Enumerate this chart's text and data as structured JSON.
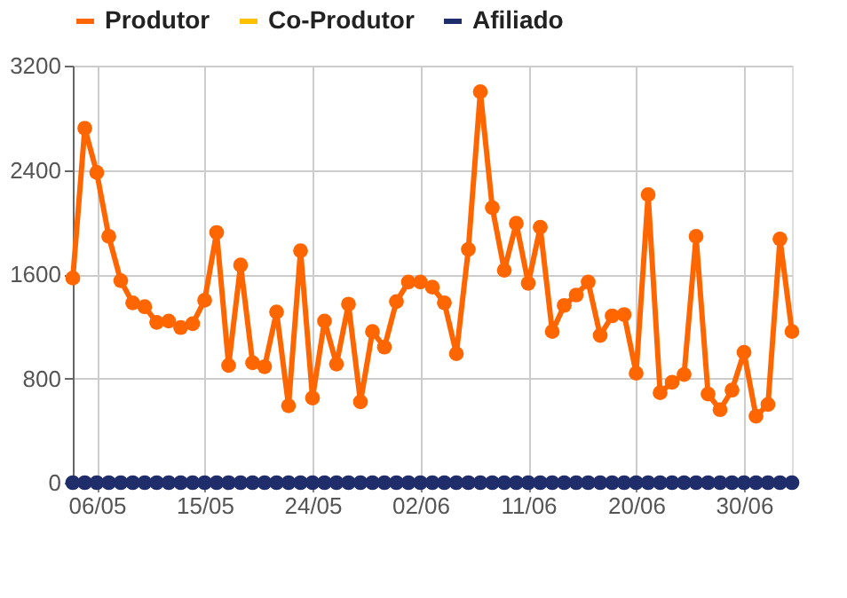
{
  "chart_data": {
    "type": "line",
    "categories": [
      null,
      null,
      "06/05",
      null,
      null,
      null,
      null,
      null,
      null,
      null,
      null,
      "15/05",
      null,
      null,
      null,
      null,
      null,
      null,
      null,
      null,
      "24/05",
      null,
      null,
      null,
      null,
      null,
      null,
      null,
      null,
      "02/06",
      null,
      null,
      null,
      null,
      null,
      null,
      null,
      null,
      "11/06",
      null,
      null,
      null,
      null,
      null,
      null,
      null,
      null,
      "20/06",
      null,
      null,
      null,
      null,
      null,
      null,
      null,
      null,
      "30/06",
      null,
      null,
      null,
      null
    ],
    "series": [
      {
        "name": "Produtor",
        "color": "#ff6600",
        "values": [
          1570,
          2720,
          2380,
          1890,
          1550,
          1380,
          1350,
          1230,
          1240,
          1190,
          1220,
          1400,
          1920,
          900,
          1670,
          920,
          890,
          1310,
          590,
          1780,
          650,
          1240,
          910,
          1370,
          620,
          1160,
          1040,
          1390,
          1540,
          1540,
          1500,
          1380,
          990,
          1790,
          3000,
          2110,
          1630,
          1990,
          1530,
          1960,
          1160,
          1360,
          1440,
          1540,
          1130,
          1280,
          1290,
          840,
          2210,
          690,
          770,
          830,
          1890,
          680,
          560,
          710,
          1000,
          510,
          600,
          1870,
          1160
        ]
      },
      {
        "name": "Co-Produtor",
        "color": "#ffc000",
        "values": [
          null,
          null,
          null,
          null,
          null,
          null,
          null,
          null,
          null,
          null,
          null,
          null,
          null,
          null,
          null,
          null,
          null,
          null,
          null,
          null,
          null,
          null,
          null,
          null,
          null,
          null,
          null,
          null,
          null,
          null,
          null,
          null,
          null,
          null,
          null,
          null,
          null,
          null,
          null,
          null,
          null,
          null,
          null,
          null,
          null,
          null,
          null,
          null,
          null,
          null,
          null,
          null,
          null,
          null,
          null,
          null,
          null,
          null,
          null,
          null,
          null
        ]
      },
      {
        "name": "Afiliado",
        "color": "#1f2d6b",
        "values": [
          0,
          0,
          0,
          0,
          0,
          0,
          0,
          0,
          0,
          0,
          0,
          0,
          0,
          0,
          0,
          0,
          0,
          0,
          0,
          0,
          0,
          0,
          0,
          0,
          0,
          0,
          0,
          0,
          0,
          0,
          0,
          0,
          0,
          0,
          0,
          0,
          0,
          0,
          0,
          0,
          0,
          0,
          0,
          0,
          0,
          0,
          0,
          0,
          0,
          0,
          0,
          0,
          0,
          0,
          0,
          0,
          0,
          0,
          0,
          0,
          0
        ]
      }
    ],
    "ylim": [
      0,
      3200
    ],
    "yticks": [
      0,
      800,
      1600,
      2400,
      3200
    ],
    "grid": true,
    "legend": "top",
    "marker": "circle",
    "line_style": "solid"
  }
}
